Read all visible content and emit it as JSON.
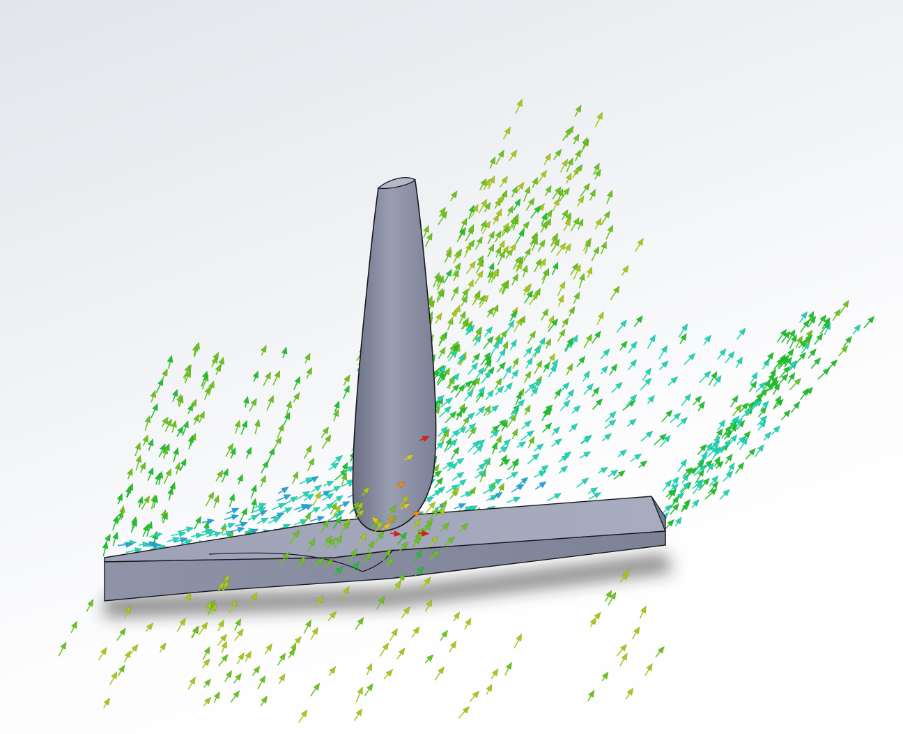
{
  "viewport": {
    "background_top": "#e2e5ea",
    "background_bottom": "#ffffff"
  },
  "model": {
    "parts": [
      "flat-plate",
      "fin"
    ],
    "face_color": "#8d91a6",
    "face_light": "#a9adbf",
    "face_dark": "#62667a",
    "edge_color": "#16171c",
    "shadow_color": "#2a2a2a"
  },
  "flow_trajectories": {
    "glyph": "arrow",
    "colormap": [
      "#1f4bd6",
      "#1fa7d6",
      "#1fd6b4",
      "#22c22e",
      "#6ac41c",
      "#a8c81a",
      "#e0c81a",
      "#f08a10",
      "#e01c10"
    ],
    "dominant_colors": [
      "#22c22e",
      "#6ac41c",
      "#a8c81a"
    ],
    "secondary_colors": [
      "#1fd6b4",
      "#1fa7d6",
      "#1f4bd6"
    ],
    "hotspot_colors": [
      "#e0c81a",
      "#f08a10",
      "#e01c10"
    ]
  }
}
